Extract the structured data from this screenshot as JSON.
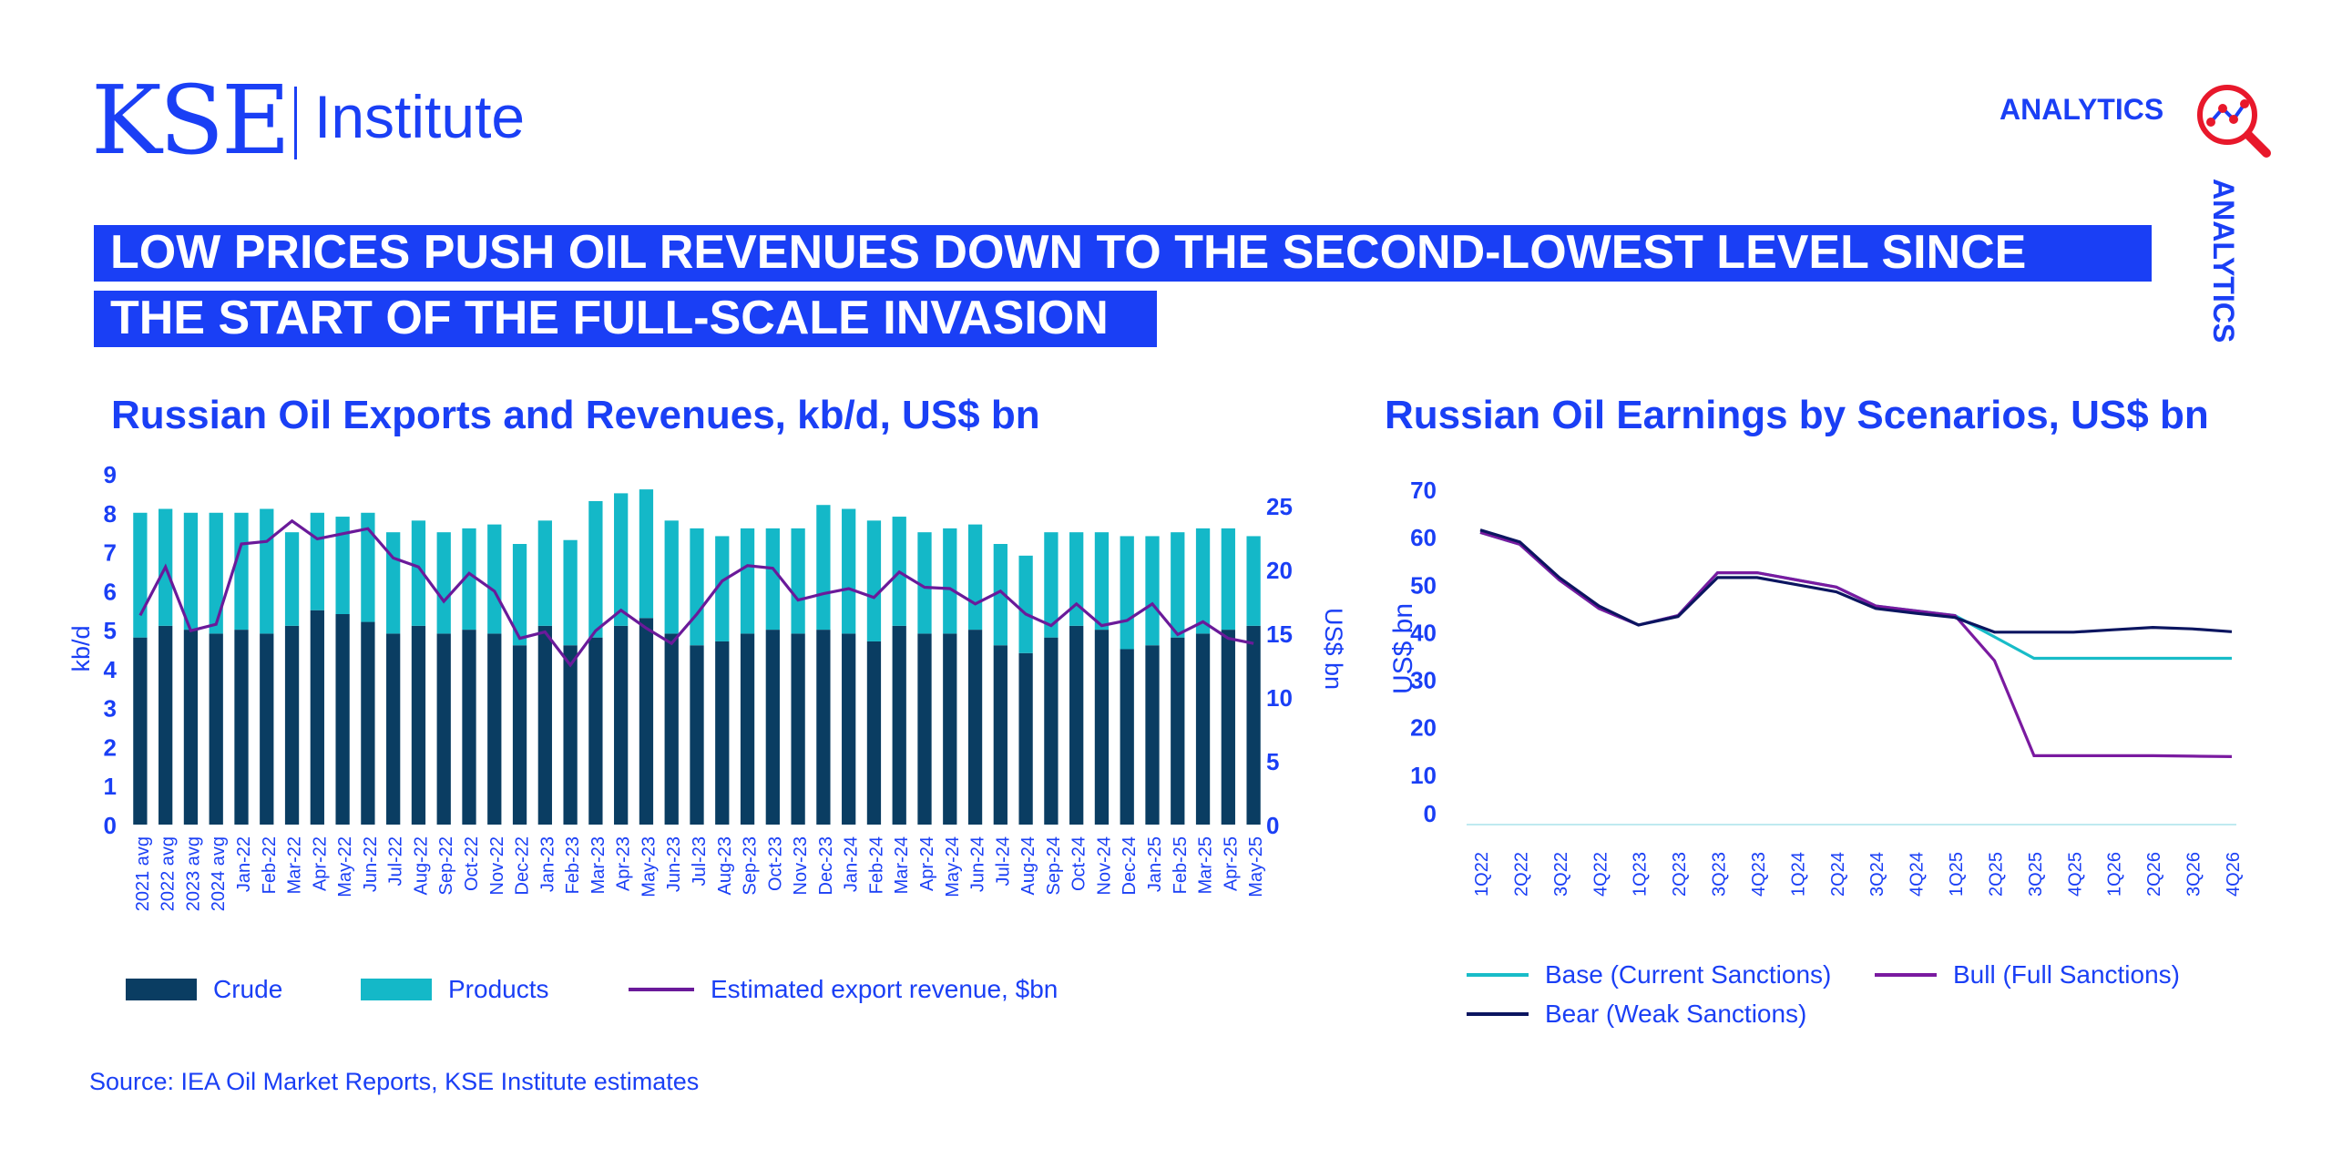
{
  "header": {
    "logo_kse": "KSE",
    "logo_institute": "Institute",
    "analytics_label": "ANALYTICS",
    "analytics_vertical": "ANALYTICS",
    "headline_line1": "LOW PRICES PUSH OIL REVENUES DOWN TO THE SECOND-LOWEST LEVEL SINCE",
    "headline_line2": "THE START OF THE FULL-SCALE INVASION"
  },
  "colors": {
    "brand_blue": "#1a3ff5",
    "crude": "#0a3d62",
    "products": "#14b8c8",
    "revenue": "#6a1a9a",
    "base": "#18bcc8",
    "bull": "#7a1aa0",
    "bear": "#0b1560",
    "accent_red": "#e8182b"
  },
  "source": "Source: IEA Oil Market Reports, KSE Institute estimates",
  "chart_data": [
    {
      "type": "bar",
      "title": "Russian Oil Exports and Revenues, kb/d, US$ bn",
      "ylabel": "kb/d",
      "y2label": "US$ bn",
      "ylim": [
        0,
        9
      ],
      "y2lim": [
        0,
        27.5
      ],
      "yticks": [
        "0",
        "1",
        "2",
        "3",
        "4",
        "5",
        "6",
        "7",
        "8",
        "9"
      ],
      "y2ticks": [
        "0",
        "5",
        "10",
        "15",
        "20",
        "25"
      ],
      "stacked": true,
      "categories": [
        "2021 avg",
        "2022 avg",
        "2023 avg",
        "2024 avg",
        "Jan-22",
        "Feb-22",
        "Mar-22",
        "Apr-22",
        "May-22",
        "Jun-22",
        "Jul-22",
        "Aug-22",
        "Sep-22",
        "Oct-22",
        "Nov-22",
        "Dec-22",
        "Jan-23",
        "Feb-23",
        "Mar-23",
        "Apr-23",
        "May-23",
        "Jun-23",
        "Jul-23",
        "Aug-23",
        "Sep-23",
        "Oct-23",
        "Nov-23",
        "Dec-23",
        "Jan-24",
        "Feb-24",
        "Mar-24",
        "Apr-24",
        "May-24",
        "Jun-24",
        "Jul-24",
        "Aug-24",
        "Sep-24",
        "Oct-24",
        "Nov-24",
        "Dec-24",
        "Jan-25",
        "Feb-25",
        "Mar-25",
        "Apr-25",
        "May-25"
      ],
      "series": [
        {
          "name": "Crude",
          "kind": "bar",
          "axis": "left",
          "values": [
            4.8,
            5.1,
            5.0,
            4.9,
            5.0,
            4.9,
            5.1,
            5.5,
            5.4,
            5.2,
            4.9,
            5.1,
            4.9,
            5.0,
            4.9,
            4.6,
            5.1,
            4.6,
            4.8,
            5.1,
            5.3,
            4.9,
            4.6,
            4.7,
            4.9,
            5.0,
            4.9,
            5.0,
            4.9,
            4.7,
            5.1,
            4.9,
            4.9,
            5.0,
            4.6,
            4.4,
            4.8,
            5.1,
            5.0,
            4.5,
            4.6,
            4.8,
            4.9,
            5.0,
            5.1
          ]
        },
        {
          "name": "Products",
          "kind": "bar",
          "axis": "left",
          "values": [
            3.2,
            3.0,
            3.0,
            3.1,
            3.0,
            3.2,
            2.4,
            2.5,
            2.5,
            2.8,
            2.6,
            2.7,
            2.6,
            2.6,
            2.8,
            2.6,
            2.7,
            2.7,
            3.5,
            3.4,
            3.3,
            2.9,
            3.0,
            2.7,
            2.7,
            2.6,
            2.7,
            3.2,
            3.2,
            3.1,
            2.8,
            2.6,
            2.7,
            2.7,
            2.6,
            2.5,
            2.7,
            2.4,
            2.5,
            2.9,
            2.8,
            2.7,
            2.7,
            2.6,
            2.3
          ]
        },
        {
          "name": "Estimated export revenue, $bn",
          "kind": "line",
          "axis": "right",
          "values": [
            16.4,
            20.2,
            15.2,
            15.7,
            22.0,
            22.2,
            23.8,
            22.4,
            22.8,
            23.2,
            20.9,
            20.2,
            17.5,
            19.7,
            18.3,
            14.6,
            15.1,
            12.5,
            15.2,
            16.8,
            15.4,
            14.2,
            16.5,
            19.1,
            20.3,
            20.1,
            17.6,
            18.1,
            18.5,
            17.8,
            19.8,
            18.6,
            18.5,
            17.3,
            18.3,
            16.5,
            15.6,
            17.3,
            15.6,
            16.0,
            17.3,
            14.9,
            15.9,
            14.6,
            14.2
          ]
        }
      ],
      "legend_position": "bottom"
    },
    {
      "type": "line",
      "title": "Russian Oil Earnings by Scenarios, US$ bn",
      "ylabel": "US$ bn",
      "ylim": [
        0,
        70
      ],
      "yticks": [
        "0",
        "10",
        "20",
        "30",
        "40",
        "50",
        "60",
        "70"
      ],
      "x": [
        "1Q22",
        "2Q22",
        "3Q22",
        "4Q22",
        "1Q23",
        "2Q23",
        "3Q23",
        "4Q23",
        "1Q24",
        "2Q24",
        "3Q24",
        "4Q24",
        "1Q25",
        "2Q25",
        "3Q25",
        "4Q25",
        "1Q26",
        "2Q26",
        "3Q26",
        "4Q26"
      ],
      "series": [
        {
          "name": "Base (Current Sanctions)",
          "values": [
            61.5,
            59.0,
            51.5,
            45.5,
            42.0,
            44.0,
            53.0,
            53.0,
            51.5,
            50.0,
            46.0,
            45.0,
            44.0,
            39.5,
            35.0,
            35.0,
            35.0,
            35.0,
            35.0,
            35.0
          ]
        },
        {
          "name": "Bull (Full Sanctions)",
          "values": [
            61.5,
            59.0,
            51.5,
            45.5,
            42.0,
            44.0,
            53.0,
            53.0,
            51.5,
            50.0,
            46.0,
            45.0,
            44.0,
            34.5,
            14.5,
            14.5,
            14.5,
            14.5,
            14.4,
            14.3
          ]
        },
        {
          "name": "Bear (Weak Sanctions)",
          "values": [
            62.0,
            59.5,
            52.0,
            46.0,
            42.0,
            43.8,
            52.0,
            52.0,
            50.5,
            49.0,
            45.5,
            44.5,
            43.6,
            40.5,
            40.5,
            40.5,
            41.0,
            41.5,
            41.2,
            40.6
          ]
        }
      ],
      "grid": false,
      "legend_position": "bottom"
    }
  ]
}
